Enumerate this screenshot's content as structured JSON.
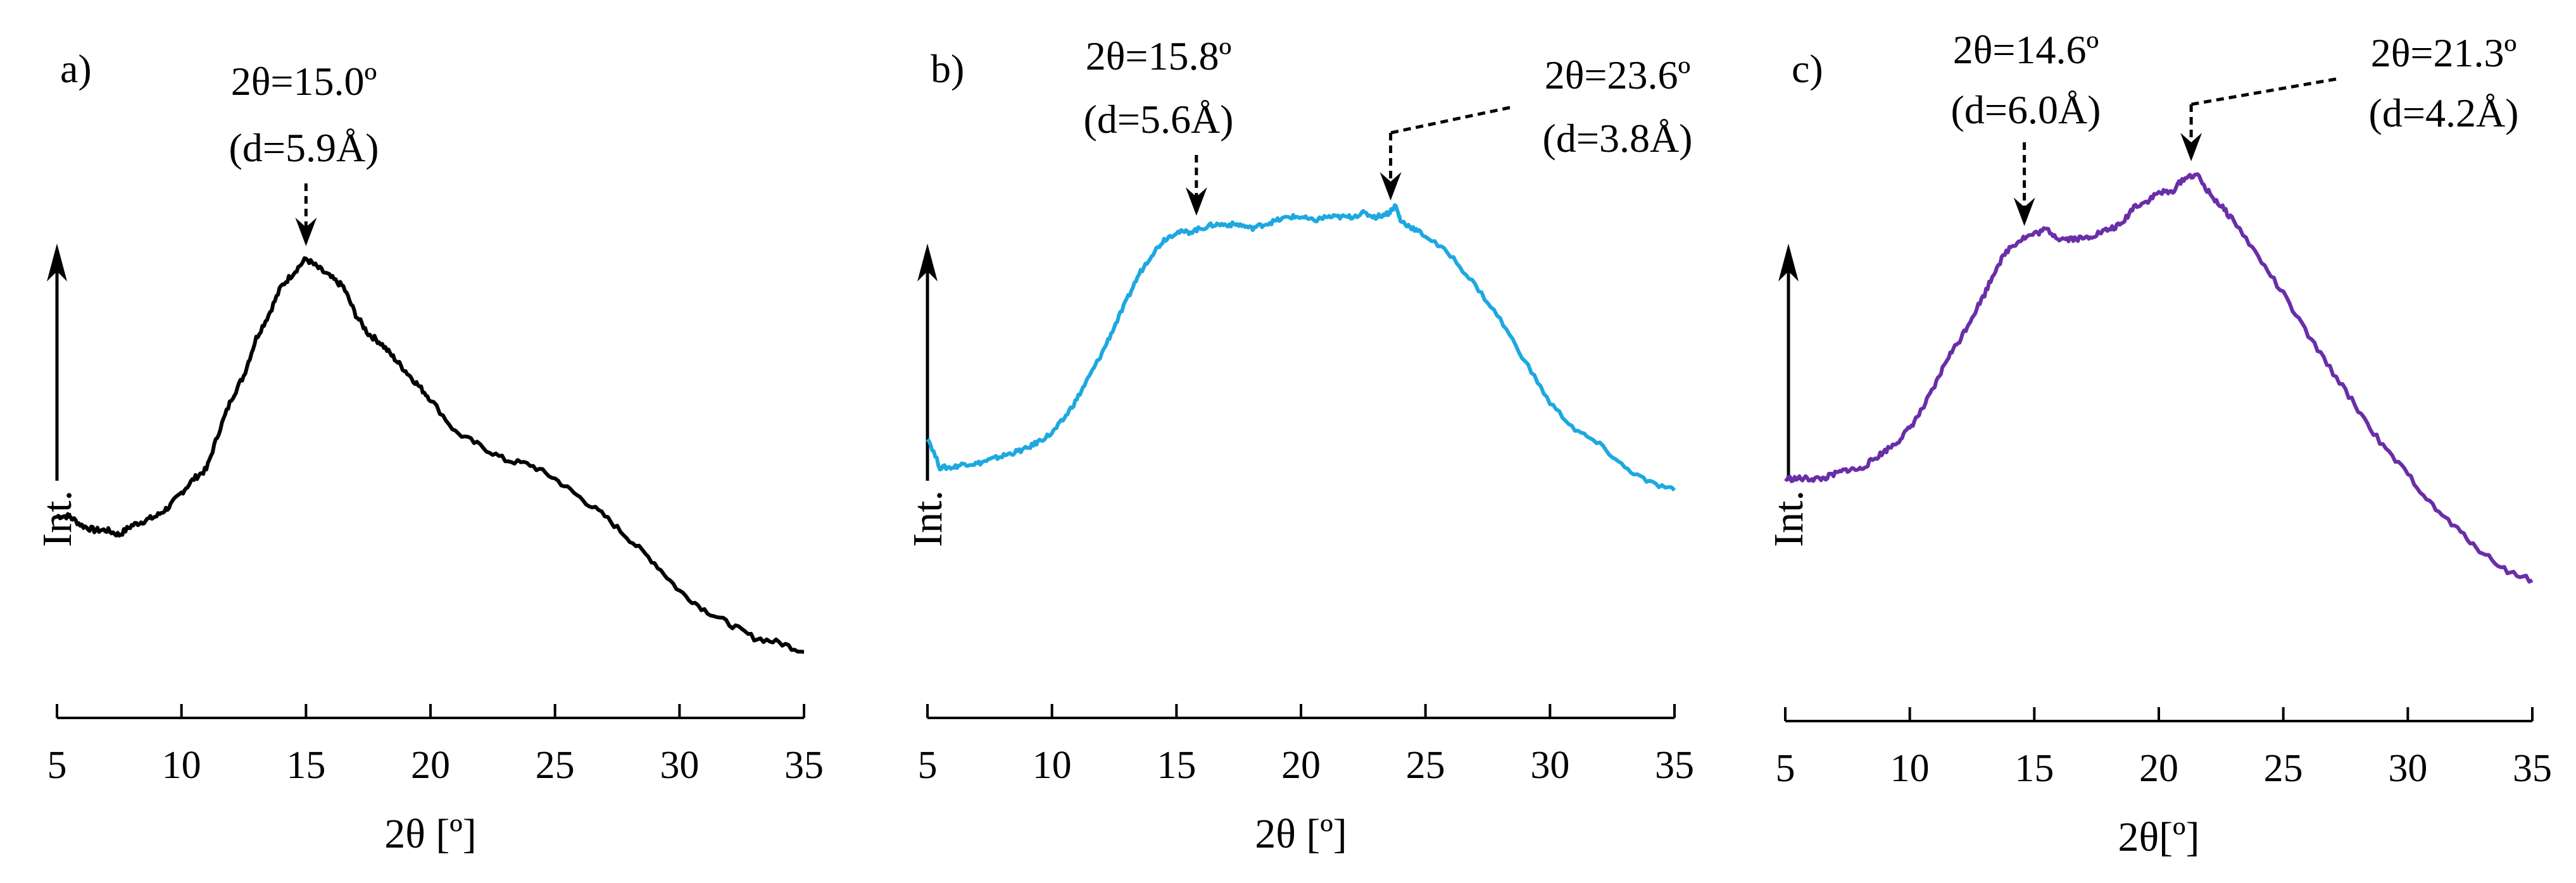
{
  "figure": {
    "description_free": true
  },
  "chart_data": [
    {
      "type": "line",
      "panel_label": "a)",
      "color": "#000000",
      "xlabel": "2θ [º]",
      "ylabel": "Int.",
      "xlim": [
        5,
        35
      ],
      "ylim": [
        0,
        1
      ],
      "xticks": [
        5,
        10,
        15,
        20,
        25,
        30,
        35
      ],
      "series": [
        {
          "name": "a",
          "x": [
            5.0,
            5.5,
            6.0,
            6.5,
            7.0,
            7.5,
            8.0,
            8.5,
            9.0,
            9.5,
            10.0,
            10.5,
            11.0,
            11.5,
            12.0,
            12.5,
            13.0,
            13.5,
            14.0,
            14.5,
            15.0,
            15.5,
            16.0,
            16.5,
            17.0,
            17.5,
            18.0,
            18.5,
            19.0,
            19.5,
            20.0,
            21.0,
            22.0,
            23.0,
            24.0,
            25.0,
            26.0,
            27.0,
            28.0,
            29.0,
            30.0,
            31.0,
            32.0,
            33.0,
            34.0,
            35.0
          ],
          "y": [
            0.35,
            0.35,
            0.33,
            0.32,
            0.32,
            0.31,
            0.33,
            0.34,
            0.35,
            0.37,
            0.4,
            0.43,
            0.45,
            0.53,
            0.6,
            0.65,
            0.73,
            0.78,
            0.84,
            0.87,
            0.9,
            0.88,
            0.86,
            0.84,
            0.78,
            0.74,
            0.72,
            0.69,
            0.66,
            0.63,
            0.6,
            0.53,
            0.5,
            0.47,
            0.46,
            0.43,
            0.39,
            0.35,
            0.3,
            0.25,
            0.19,
            0.15,
            0.12,
            0.09,
            0.08,
            0.06
          ]
        }
      ],
      "annotations": [
        {
          "x": 15.0,
          "line1": "2θ=15.0º",
          "line2": "(d=5.9Å)"
        }
      ]
    },
    {
      "type": "line",
      "panel_label": "b)",
      "color": "#1ea8e0",
      "xlabel": "2θ [º]",
      "ylabel": "Int.",
      "xlim": [
        5,
        35
      ],
      "ylim": [
        0,
        1
      ],
      "xticks": [
        5,
        10,
        15,
        20,
        25,
        30,
        35
      ],
      "series": [
        {
          "name": "b",
          "x": [
            5.0,
            5.5,
            6.0,
            6.5,
            7.0,
            7.5,
            8.0,
            8.5,
            9.0,
            9.5,
            10.0,
            10.5,
            11.0,
            11.5,
            12.0,
            12.5,
            13.0,
            13.5,
            14.0,
            14.5,
            15.0,
            15.5,
            16.0,
            16.5,
            17.0,
            17.5,
            18.0,
            18.5,
            19.0,
            19.5,
            20.0,
            20.5,
            21.0,
            21.5,
            22.0,
            22.5,
            23.0,
            23.5,
            23.8,
            24.0,
            24.5,
            25.0,
            26.0,
            27.0,
            28.0,
            29.0,
            30.0,
            31.0,
            32.0,
            33.0,
            34.0,
            35.0
          ],
          "y": [
            0.39,
            0.31,
            0.31,
            0.32,
            0.32,
            0.33,
            0.34,
            0.35,
            0.36,
            0.38,
            0.4,
            0.44,
            0.49,
            0.55,
            0.61,
            0.68,
            0.75,
            0.82,
            0.87,
            0.91,
            0.93,
            0.93,
            0.94,
            0.95,
            0.95,
            0.95,
            0.94,
            0.95,
            0.96,
            0.97,
            0.97,
            0.96,
            0.97,
            0.97,
            0.97,
            0.98,
            0.97,
            0.98,
            1.0,
            0.96,
            0.94,
            0.92,
            0.87,
            0.79,
            0.7,
            0.59,
            0.48,
            0.41,
            0.37,
            0.31,
            0.27,
            0.25
          ]
        }
      ],
      "annotations": [
        {
          "x": 15.8,
          "line1": "2θ=15.8º",
          "line2": "(d=5.6Å)"
        },
        {
          "x": 23.6,
          "line1": "2θ=23.6º",
          "line2": "(d=3.8Å)"
        }
      ]
    },
    {
      "type": "line",
      "panel_label": "c)",
      "color": "#6a2ea8",
      "xlabel": "2θ[º]",
      "ylabel": "Int.",
      "xlim": [
        5,
        35
      ],
      "ylim": [
        0,
        1
      ],
      "xticks": [
        5,
        10,
        15,
        20,
        25,
        30,
        35
      ],
      "series": [
        {
          "name": "c",
          "x": [
            5.0,
            5.5,
            6.0,
            6.5,
            7.0,
            7.5,
            8.0,
            8.5,
            9.0,
            9.5,
            10.0,
            10.5,
            11.0,
            11.5,
            12.0,
            12.5,
            13.0,
            13.5,
            14.0,
            14.5,
            15.0,
            15.5,
            16.0,
            16.5,
            17.0,
            17.5,
            18.0,
            18.5,
            19.0,
            19.5,
            20.0,
            20.5,
            21.0,
            21.5,
            22.0,
            22.5,
            23.0,
            24.0,
            25.0,
            26.0,
            27.0,
            28.0,
            29.0,
            30.0,
            31.0,
            32.0,
            33.0,
            34.0,
            35.0
          ],
          "y": [
            0.34,
            0.34,
            0.34,
            0.34,
            0.35,
            0.36,
            0.36,
            0.38,
            0.4,
            0.42,
            0.45,
            0.49,
            0.54,
            0.6,
            0.64,
            0.69,
            0.74,
            0.8,
            0.84,
            0.86,
            0.87,
            0.88,
            0.86,
            0.86,
            0.86,
            0.87,
            0.88,
            0.89,
            0.93,
            0.94,
            0.96,
            0.96,
            0.99,
            1.0,
            0.96,
            0.93,
            0.9,
            0.82,
            0.74,
            0.65,
            0.57,
            0.49,
            0.41,
            0.35,
            0.28,
            0.23,
            0.18,
            0.14,
            0.12
          ]
        }
      ],
      "annotations": [
        {
          "x": 14.6,
          "line1": "2θ=14.6º",
          "line2": "(d=6.0Å)"
        },
        {
          "x": 21.3,
          "line1": "2θ=21.3º",
          "line2": "(d=4.2Å)"
        }
      ]
    }
  ]
}
